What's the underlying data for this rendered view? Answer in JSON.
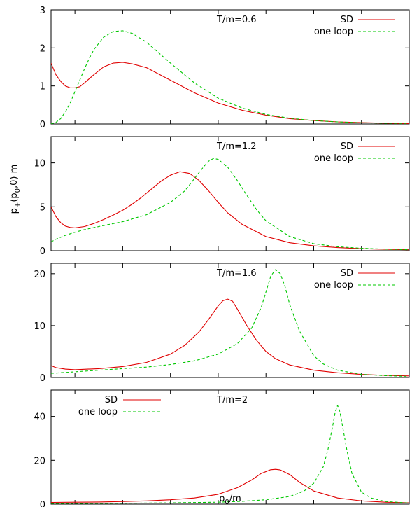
{
  "chart_data": {
    "type": "line",
    "ylabel": "p+(p0,0) m",
    "xlabel": "p0/m",
    "xlim": [
      0.05,
      0.8
    ],
    "xticks": [
      "0.1",
      "0.2",
      "0.3",
      "0.4",
      "0.5",
      "0.6",
      "0.7",
      "0.8"
    ],
    "panels": [
      {
        "title": "T/m=0.6",
        "legend_position": "top-right",
        "ylim": [
          0,
          3
        ],
        "yticks": [
          0,
          1,
          2,
          3
        ],
        "series": [
          {
            "name": "SD",
            "color": "#e00000",
            "dash": "solid",
            "x": [
              0.05,
              0.06,
              0.07,
              0.08,
              0.09,
              0.1,
              0.11,
              0.12,
              0.14,
              0.16,
              0.18,
              0.2,
              0.22,
              0.25,
              0.3,
              0.35,
              0.4,
              0.45,
              0.5,
              0.55,
              0.6,
              0.65,
              0.7,
              0.75,
              0.8
            ],
            "y": [
              1.6,
              1.3,
              1.12,
              1.0,
              0.95,
              0.95,
              0.98,
              1.08,
              1.3,
              1.5,
              1.6,
              1.62,
              1.58,
              1.48,
              1.15,
              0.82,
              0.55,
              0.36,
              0.23,
              0.14,
              0.09,
              0.055,
              0.035,
              0.02,
              0.01
            ]
          },
          {
            "name": "one loop",
            "color": "#00c800",
            "dash": "dashed",
            "x": [
              0.05,
              0.06,
              0.07,
              0.08,
              0.09,
              0.1,
              0.11,
              0.12,
              0.13,
              0.14,
              0.16,
              0.18,
              0.2,
              0.22,
              0.25,
              0.3,
              0.35,
              0.4,
              0.45,
              0.5,
              0.55,
              0.6,
              0.65,
              0.7,
              0.75,
              0.8
            ],
            "y": [
              0.0,
              0.04,
              0.14,
              0.32,
              0.55,
              0.85,
              1.15,
              1.45,
              1.72,
              1.96,
              2.28,
              2.43,
              2.45,
              2.38,
              2.15,
              1.6,
              1.08,
              0.68,
              0.42,
              0.25,
              0.15,
              0.09,
              0.055,
              0.032,
              0.02,
              0.012
            ]
          }
        ]
      },
      {
        "title": "T/m=1.2",
        "legend_position": "top-right",
        "ylim": [
          0,
          13
        ],
        "yticks": [
          0,
          5,
          10
        ],
        "series": [
          {
            "name": "SD",
            "color": "#e00000",
            "dash": "solid",
            "x": [
              0.05,
              0.06,
              0.07,
              0.08,
              0.09,
              0.1,
              0.12,
              0.14,
              0.16,
              0.18,
              0.2,
              0.22,
              0.24,
              0.26,
              0.28,
              0.3,
              0.32,
              0.34,
              0.36,
              0.38,
              0.4,
              0.42,
              0.45,
              0.5,
              0.55,
              0.6,
              0.65,
              0.7,
              0.75,
              0.8
            ],
            "y": [
              5.0,
              3.9,
              3.2,
              2.8,
              2.65,
              2.6,
              2.75,
              3.1,
              3.55,
              4.05,
              4.6,
              5.3,
              6.1,
              7.0,
              7.9,
              8.6,
              9.0,
              8.8,
              8.0,
              6.8,
              5.5,
              4.3,
              3.0,
              1.6,
              0.9,
              0.55,
              0.35,
              0.22,
              0.15,
              0.1
            ]
          },
          {
            "name": "one loop",
            "color": "#00c800",
            "dash": "dashed",
            "x": [
              0.05,
              0.06,
              0.08,
              0.1,
              0.12,
              0.15,
              0.2,
              0.25,
              0.3,
              0.33,
              0.35,
              0.37,
              0.38,
              0.39,
              0.4,
              0.42,
              0.44,
              0.46,
              0.48,
              0.5,
              0.55,
              0.6,
              0.65,
              0.7,
              0.75,
              0.8
            ],
            "y": [
              1.0,
              1.3,
              1.75,
              2.1,
              2.4,
              2.75,
              3.3,
              4.1,
              5.5,
              6.8,
              8.2,
              9.6,
              10.2,
              10.5,
              10.4,
              9.5,
              8.0,
              6.3,
              4.7,
              3.4,
              1.6,
              0.8,
              0.45,
              0.28,
              0.17,
              0.11
            ]
          }
        ]
      },
      {
        "title": "T/m=1.6",
        "legend_position": "top-right",
        "ylim": [
          0,
          22
        ],
        "yticks": [
          0,
          10,
          20
        ],
        "series": [
          {
            "name": "SD",
            "color": "#e00000",
            "dash": "solid",
            "x": [
              0.05,
              0.06,
              0.08,
              0.1,
              0.15,
              0.2,
              0.25,
              0.3,
              0.33,
              0.36,
              0.38,
              0.4,
              0.41,
              0.42,
              0.43,
              0.44,
              0.46,
              0.48,
              0.5,
              0.52,
              0.55,
              0.6,
              0.65,
              0.7,
              0.75,
              0.8
            ],
            "y": [
              2.3,
              1.9,
              1.6,
              1.5,
              1.7,
              2.1,
              2.9,
              4.5,
              6.2,
              8.8,
              11.2,
              13.8,
              14.8,
              15.1,
              14.7,
              13.2,
              10.0,
              7.2,
              5.0,
              3.6,
              2.4,
              1.4,
              0.9,
              0.6,
              0.4,
              0.3
            ]
          },
          {
            "name": "one loop",
            "color": "#00c800",
            "dash": "dashed",
            "x": [
              0.05,
              0.1,
              0.15,
              0.2,
              0.25,
              0.3,
              0.35,
              0.4,
              0.44,
              0.47,
              0.49,
              0.5,
              0.51,
              0.52,
              0.53,
              0.54,
              0.55,
              0.57,
              0.6,
              0.62,
              0.65,
              0.7,
              0.75,
              0.8
            ],
            "y": [
              0.8,
              1.1,
              1.4,
              1.7,
              2.0,
              2.5,
              3.2,
              4.5,
              6.5,
              9.5,
              13.5,
              16.5,
              19.5,
              20.8,
              20.0,
              17.5,
              14.0,
              9.0,
              4.2,
              2.6,
              1.4,
              0.6,
              0.35,
              0.2
            ]
          }
        ]
      },
      {
        "title": "T/m=2",
        "legend_position": "top-left",
        "ylim": [
          0,
          52
        ],
        "yticks": [
          0,
          20,
          40
        ],
        "series": [
          {
            "name": "SD",
            "color": "#e00000",
            "dash": "solid",
            "x": [
              0.05,
              0.1,
              0.15,
              0.2,
              0.25,
              0.3,
              0.35,
              0.4,
              0.44,
              0.47,
              0.49,
              0.51,
              0.52,
              0.53,
              0.55,
              0.57,
              0.6,
              0.65,
              0.7,
              0.75,
              0.8
            ],
            "y": [
              0.8,
              0.9,
              1.0,
              1.2,
              1.5,
              2.0,
              2.8,
              4.5,
              7.5,
              11.0,
              14.0,
              15.7,
              15.9,
              15.6,
              13.5,
              10.0,
              6.0,
              2.8,
              1.5,
              0.9,
              0.6
            ]
          },
          {
            "name": "one loop",
            "color": "#00c800",
            "dash": "dashed",
            "x": [
              0.05,
              0.2,
              0.3,
              0.4,
              0.45,
              0.5,
              0.55,
              0.58,
              0.6,
              0.62,
              0.63,
              0.64,
              0.645,
              0.65,
              0.655,
              0.66,
              0.67,
              0.68,
              0.7,
              0.72,
              0.75,
              0.8
            ],
            "y": [
              0.3,
              0.4,
              0.6,
              0.9,
              1.3,
              2.0,
              3.5,
              6.0,
              9.5,
              17.0,
              25.0,
              36.0,
              42.0,
              45.0,
              42.0,
              36.0,
              24.0,
              14.0,
              5.5,
              2.8,
              1.2,
              0.5
            ]
          }
        ]
      }
    ]
  }
}
